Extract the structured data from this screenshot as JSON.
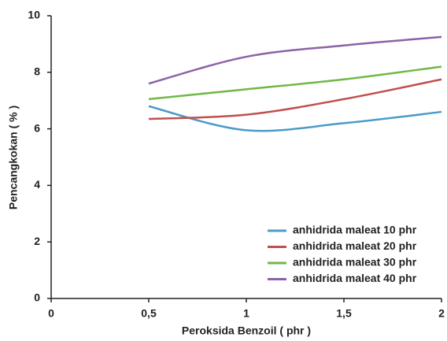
{
  "chart_data": {
    "type": "line",
    "xlabel": "Peroksida Benzoil ( phr )",
    "ylabel": "Pencangkokan ( % )",
    "x": [
      0.5,
      1,
      1.5,
      2
    ],
    "series": [
      {
        "name": "anhidrida maleat 10 phr",
        "color": "#4b9bc8",
        "values": [
          6.8,
          5.95,
          6.2,
          6.6
        ]
      },
      {
        "name": "anhidrida maleat 20 phr",
        "color": "#c0504d",
        "values": [
          6.35,
          6.5,
          7.05,
          7.75
        ]
      },
      {
        "name": "anhidrida maleat 30 phr",
        "color": "#70b845",
        "values": [
          7.05,
          7.4,
          7.75,
          8.2
        ]
      },
      {
        "name": "anhidrida maleat 40 phr",
        "color": "#8b62a8",
        "values": [
          7.6,
          8.55,
          8.95,
          9.25
        ]
      }
    ],
    "xlim": [
      0,
      2
    ],
    "xticks": [
      0,
      {
        "value": 0.5,
        "label": "0,5"
      },
      1,
      {
        "value": 1.5,
        "label": "1,5"
      },
      2
    ],
    "ylim": [
      0,
      10
    ],
    "yticks": [
      0,
      2,
      4,
      6,
      8,
      10
    ],
    "legend": "lower right"
  }
}
